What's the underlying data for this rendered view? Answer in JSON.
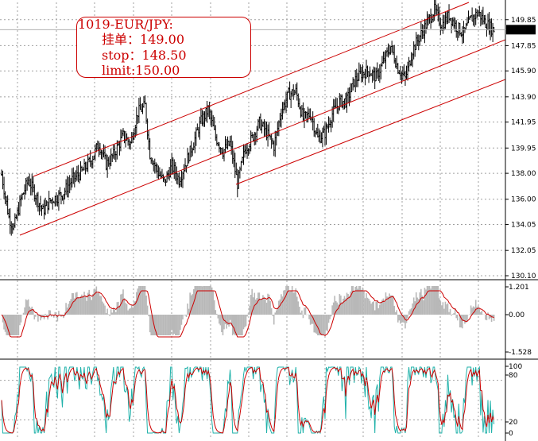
{
  "order_box": {
    "title": "1019-EUR/JPY:",
    "pending_label": "挂单：",
    "pending_value": "149.00",
    "stop_label": "stop：",
    "stop_value": "148.50",
    "limit_label": "limit:",
    "limit_value": "150.00"
  },
  "chart_data": [
    {
      "type": "ohlc",
      "panel": "price",
      "symbol": "EUR/JPY",
      "current_price": "149.08",
      "y_ticks": [
        "149.85",
        "147.85",
        "145.90",
        "143.90",
        "141.95",
        "139.95",
        "138.00",
        "136.00",
        "134.05",
        "132.05",
        "130.10"
      ],
      "ylim": [
        130.1,
        151.0
      ],
      "approx_path": [
        [
          0,
          137.9
        ],
        [
          6,
          134.6
        ],
        [
          10,
          133.8
        ],
        [
          16,
          136.0
        ],
        [
          22,
          137.5
        ],
        [
          28,
          136.3
        ],
        [
          34,
          135.1
        ],
        [
          40,
          135.9
        ],
        [
          50,
          136.4
        ],
        [
          58,
          137.5
        ],
        [
          66,
          138.1
        ],
        [
          74,
          139.1
        ],
        [
          80,
          140.3
        ],
        [
          86,
          138.7
        ],
        [
          92,
          139.4
        ],
        [
          100,
          140.9
        ],
        [
          106,
          140.3
        ],
        [
          112,
          142.7
        ],
        [
          118,
          143.2
        ],
        [
          122,
          139.5
        ],
        [
          128,
          138.2
        ],
        [
          134,
          137.3
        ],
        [
          140,
          138.6
        ],
        [
          146,
          137.5
        ],
        [
          152,
          138.9
        ],
        [
          158,
          140.4
        ],
        [
          164,
          142.0
        ],
        [
          170,
          142.9
        ],
        [
          176,
          140.8
        ],
        [
          182,
          139.7
        ],
        [
          188,
          140.3
        ],
        [
          194,
          137.2
        ],
        [
          200,
          139.8
        ],
        [
          206,
          140.7
        ],
        [
          212,
          141.9
        ],
        [
          218,
          141.1
        ],
        [
          224,
          140.1
        ],
        [
          230,
          142.8
        ],
        [
          236,
          144.1
        ],
        [
          242,
          144.3
        ],
        [
          248,
          142.2
        ],
        [
          254,
          142.6
        ],
        [
          260,
          140.7
        ],
        [
          266,
          141.1
        ],
        [
          272,
          142.6
        ],
        [
          278,
          143.5
        ],
        [
          284,
          143.6
        ],
        [
          290,
          145.1
        ],
        [
          296,
          145.7
        ],
        [
          302,
          145.9
        ],
        [
          308,
          145.4
        ],
        [
          314,
          146.6
        ],
        [
          320,
          147.8
        ],
        [
          326,
          146.1
        ],
        [
          332,
          145.3
        ],
        [
          338,
          147.5
        ],
        [
          344,
          148.6
        ],
        [
          350,
          149.6
        ],
        [
          356,
          150.6
        ],
        [
          362,
          149.4
        ],
        [
          368,
          150.2
        ],
        [
          374,
          149.3
        ],
        [
          380,
          148.8
        ],
        [
          386,
          149.9
        ],
        [
          392,
          150.4
        ],
        [
          398,
          149.6
        ],
        [
          404,
          149.1
        ]
      ]
    },
    {
      "type": "histogram+line",
      "panel": "macd",
      "y_ticks": [
        "1.201",
        "0.00",
        "-1.528"
      ],
      "ylim": [
        -1.528,
        1.201
      ]
    },
    {
      "type": "line",
      "panel": "stochastic",
      "y_ticks": [
        "100",
        "80",
        "20",
        "0"
      ],
      "ylim": [
        0,
        100
      ]
    }
  ]
}
